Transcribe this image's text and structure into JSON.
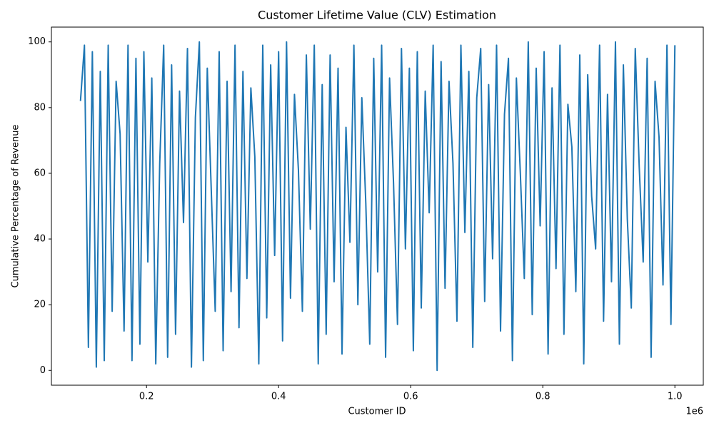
{
  "chart_data": {
    "type": "line",
    "title": "Customer Lifetime Value (CLV) Estimation",
    "x_label": "Customer ID",
    "y_label": "Cumulative Percentage of Revenue",
    "x_offset_label": "1e6",
    "color": "#1f77b4",
    "xlim": [
      56000,
      1043000
    ],
    "ylim": [
      -4.5,
      104.5
    ],
    "xticks": [
      {
        "value": 200000,
        "label": "0.2"
      },
      {
        "value": 400000,
        "label": "0.4"
      },
      {
        "value": 600000,
        "label": "0.6"
      },
      {
        "value": 800000,
        "label": "0.8"
      },
      {
        "value": 1000000,
        "label": "1.0"
      }
    ],
    "yticks": [
      0,
      20,
      40,
      60,
      80,
      100
    ],
    "x": [
      100000,
      106000,
      112000,
      118000,
      124000,
      130000,
      136000,
      142000,
      148000,
      154000,
      160000,
      166000,
      172000,
      178000,
      184000,
      190000,
      196000,
      202000,
      208000,
      214000,
      220000,
      226000,
      232000,
      238000,
      244000,
      250000,
      256000,
      262000,
      268000,
      274000,
      280000,
      286000,
      292000,
      298000,
      304000,
      310000,
      316000,
      322000,
      328000,
      334000,
      340000,
      346000,
      352000,
      358000,
      364000,
      370000,
      376000,
      382000,
      388000,
      394000,
      400000,
      406000,
      412000,
      418000,
      424000,
      430000,
      436000,
      442000,
      448000,
      454000,
      460000,
      466000,
      472000,
      478000,
      484000,
      490000,
      496000,
      502000,
      508000,
      514000,
      520000,
      526000,
      532000,
      538000,
      544000,
      550000,
      556000,
      562000,
      568000,
      574000,
      580000,
      586000,
      592000,
      598000,
      604000,
      610000,
      616000,
      622000,
      628000,
      634000,
      640000,
      646000,
      652000,
      658000,
      664000,
      670000,
      676000,
      682000,
      688000,
      694000,
      700000,
      706000,
      712000,
      718000,
      724000,
      730000,
      736000,
      742000,
      748000,
      754000,
      760000,
      766000,
      772000,
      778000,
      784000,
      790000,
      796000,
      802000,
      808000,
      814000,
      820000,
      826000,
      832000,
      838000,
      844000,
      850000,
      856000,
      862000,
      868000,
      874000,
      880000,
      886000,
      892000,
      898000,
      904000,
      910000,
      916000,
      922000,
      928000,
      934000,
      940000,
      946000,
      952000,
      958000,
      964000,
      970000,
      976000,
      982000,
      988000,
      994000,
      1000000
    ],
    "values": [
      82,
      99,
      7,
      97,
      1,
      91,
      3,
      99,
      18,
      88,
      72,
      12,
      99,
      3,
      95,
      8,
      97,
      33,
      89,
      2,
      63,
      99,
      4,
      93,
      11,
      85,
      45,
      98,
      1,
      77,
      100,
      3,
      92,
      55,
      18,
      97,
      6,
      88,
      24,
      99,
      13,
      91,
      28,
      86,
      65,
      2,
      99,
      16,
      93,
      35,
      97,
      9,
      100,
      22,
      84,
      61,
      18,
      96,
      43,
      99,
      2,
      87,
      11,
      96,
      27,
      92,
      5,
      74,
      39,
      99,
      20,
      83,
      51,
      8,
      95,
      30,
      99,
      4,
      89,
      57,
      14,
      98,
      37,
      92,
      6,
      97,
      19,
      85,
      48,
      99,
      0,
      94,
      25,
      88,
      63,
      15,
      99,
      42,
      91,
      7,
      83,
      98,
      21,
      87,
      34,
      99,
      12,
      78,
      95,
      3,
      89,
      60,
      28,
      100,
      17,
      92,
      44,
      97,
      5,
      86,
      31,
      99,
      11,
      81,
      68,
      24,
      96,
      2,
      90,
      53,
      37,
      99,
      15,
      84,
      27,
      100,
      8,
      93,
      46,
      19,
      98,
      62,
      33,
      95,
      4,
      88,
      71,
      26,
      99,
      14,
      99
    ]
  }
}
